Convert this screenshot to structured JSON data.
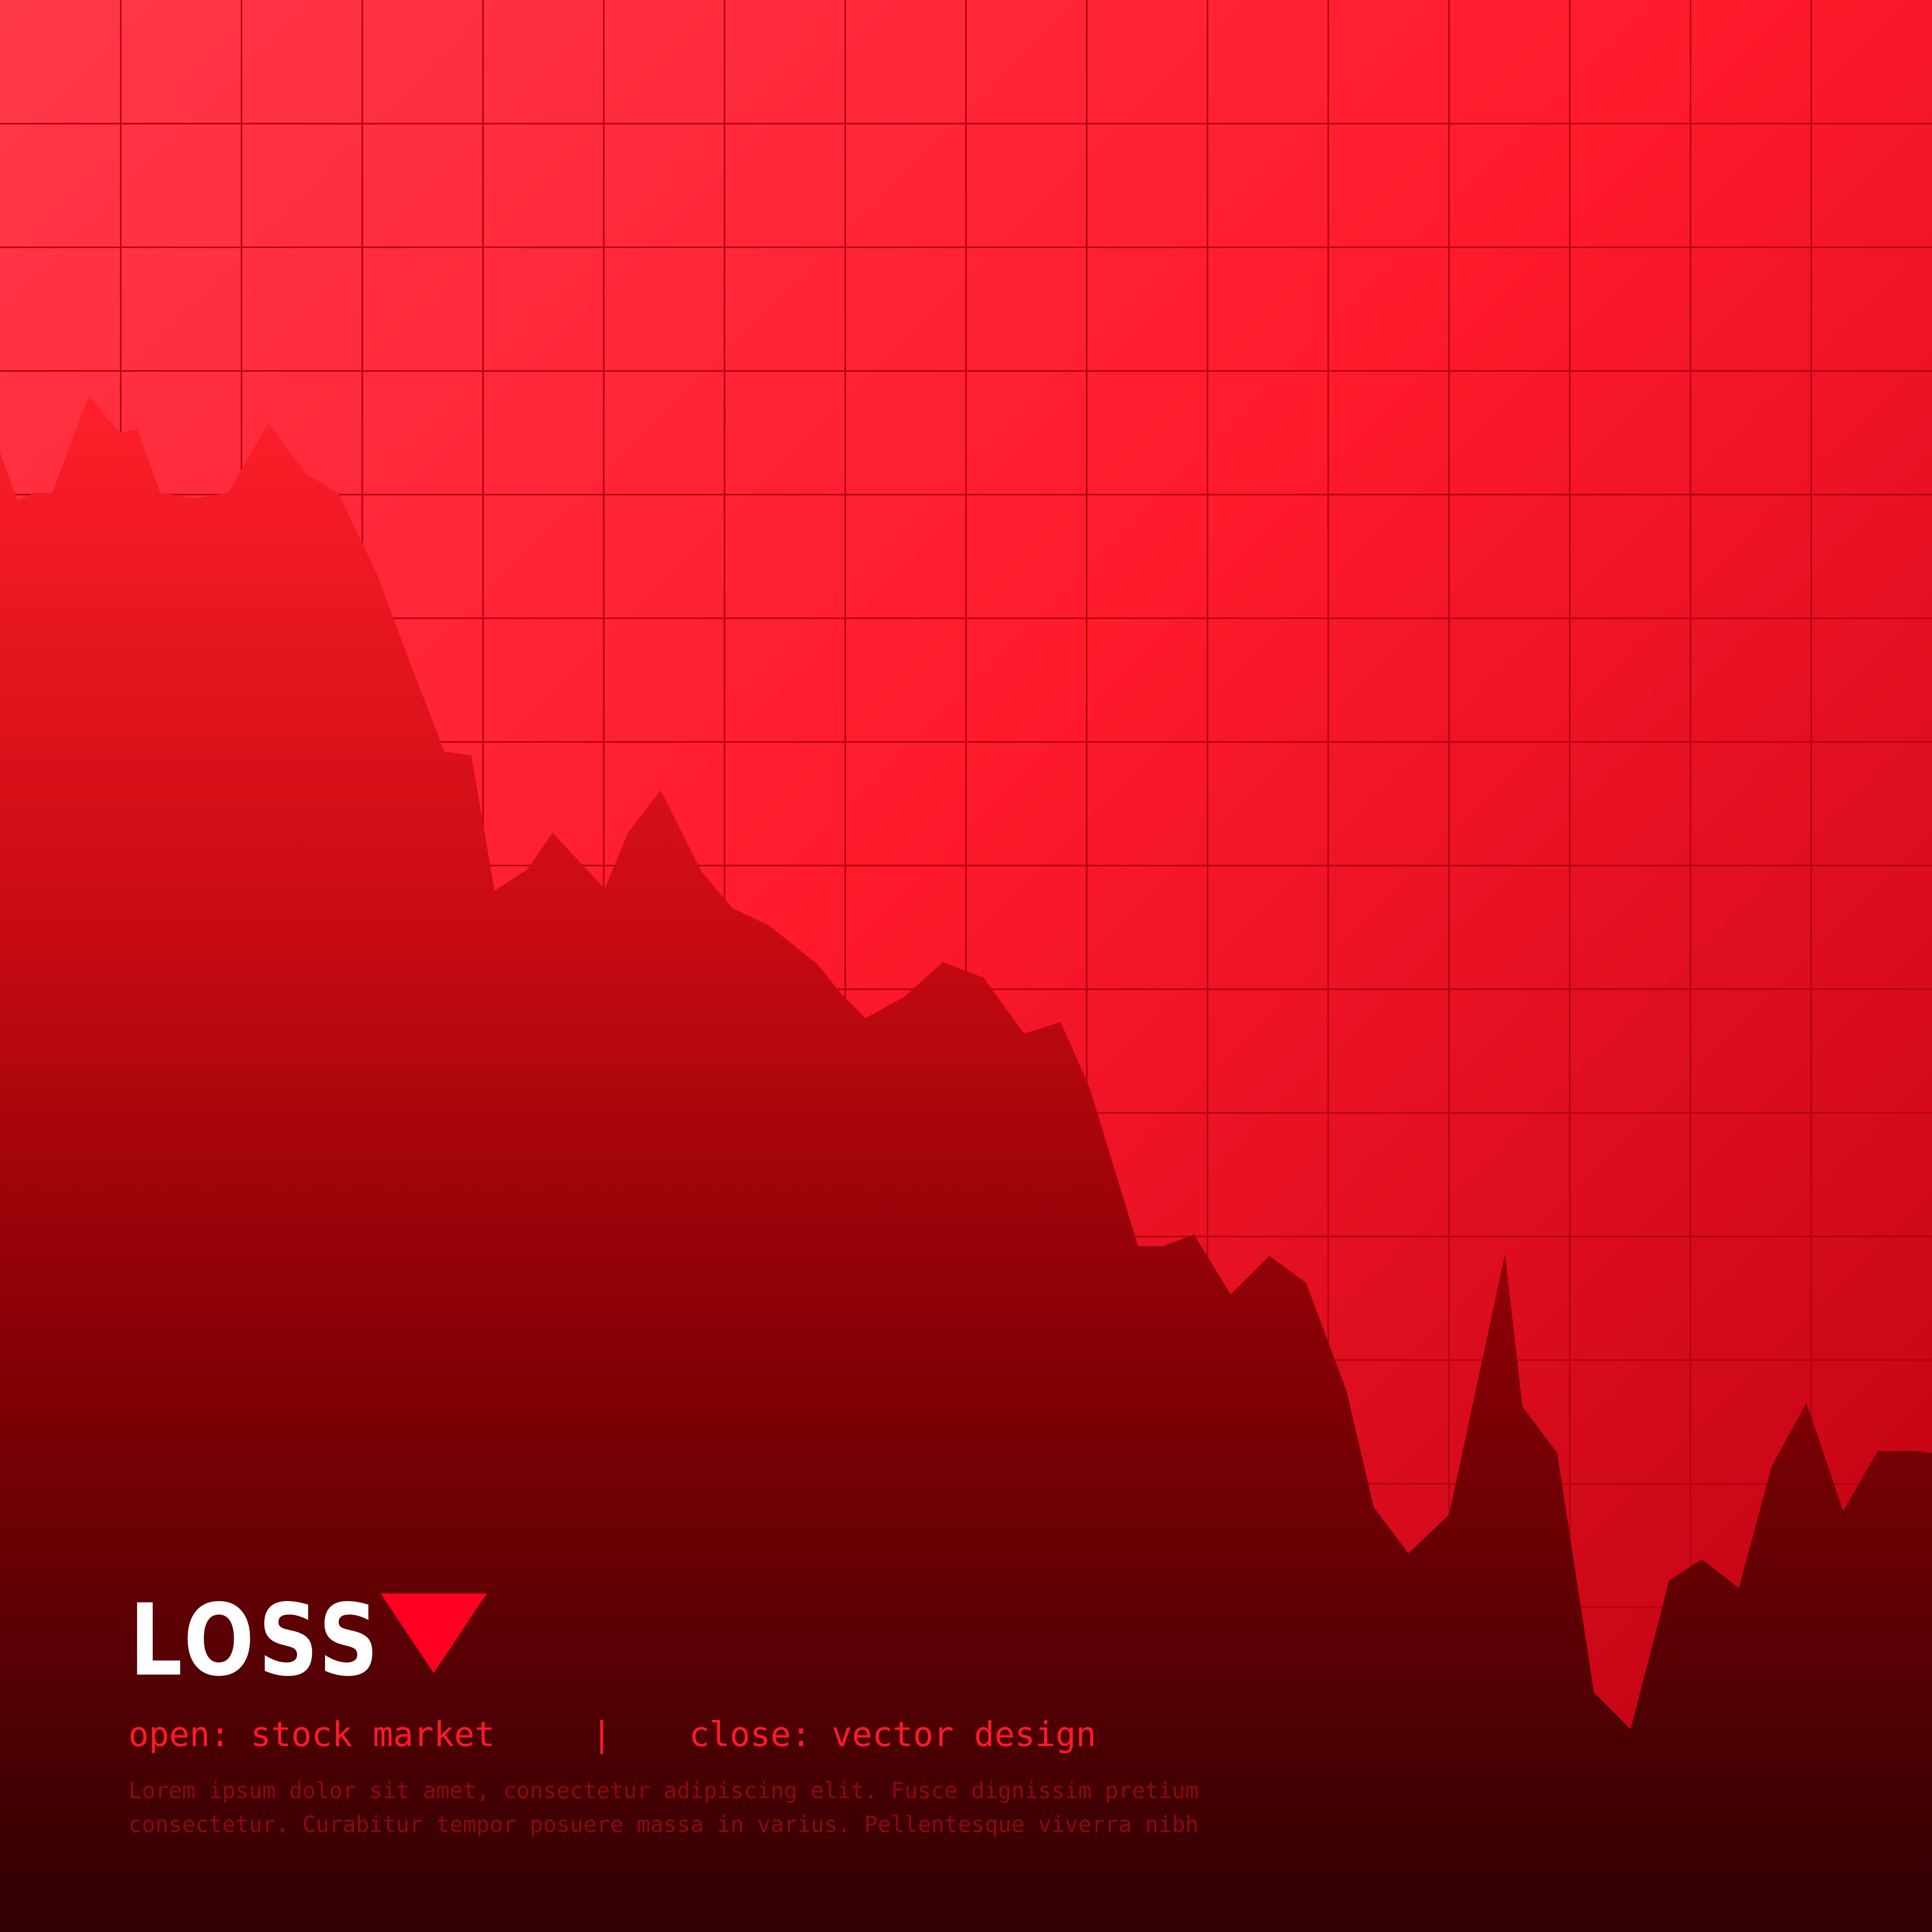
{
  "colors": {
    "bg_top_left": "#ff3848",
    "bg_top_right": "#ff1a2c",
    "bg_bottom": "#b8000f",
    "area_top": "#ff1f2a",
    "area_bottom": "#2e0002",
    "grid": "#b0000c",
    "arrow": "#ff0022",
    "accent_text": "#ff1a2b",
    "muted_text": "#8a0a12",
    "title_text": "#ffffff"
  },
  "labels": {
    "title": "LOSS",
    "arrow_icon": "down-triangle-icon",
    "open_text": "open: stock market",
    "separator": "|",
    "close_text": "close: vector design",
    "lorem_line1": "Lorem ipsum dolor sit amet, consectetur adipiscing elit. Fusce dignissim pretium",
    "lorem_line2": "consectetur. Curabitur tempor posuere massa in varius. Pellentesque viverra nibh"
  },
  "chart_data": {
    "type": "area",
    "title": "",
    "xlabel": "",
    "ylabel": "",
    "grid": true,
    "xlim": [
      0,
      100
    ],
    "ylim": [
      0,
      100
    ],
    "grid_x_step": 6.25,
    "grid_y_step": 6.4,
    "series": [
      {
        "x": [
          0,
          0.9,
          1.8,
          2.7,
          4.6,
          6.2,
          7.1,
          8.3,
          10.1,
          11.8,
          13.9,
          15.8,
          17.5,
          19.5,
          21.3,
          23.0,
          24.4,
          25.6,
          27.3,
          28.6,
          31.3,
          32.5,
          34.2,
          36.3,
          37.9,
          39.8,
          42.3,
          43.6,
          44.8,
          46.8,
          48.8,
          50.9,
          53.0,
          54.9,
          56.4,
          58.9,
          60.2,
          61.8,
          63.7,
          65.7,
          67.6,
          69.7,
          71.1,
          72.9,
          75.0,
          77.9,
          78.8,
          80.6,
          82.5,
          84.4,
          86.4,
          88.1,
          90.0,
          91.7,
          93.5,
          95.4,
          97.2,
          99.2,
          100
        ],
        "y": [
          76.6,
          74.1,
          74.5,
          74.5,
          79.5,
          77.6,
          77.8,
          74.5,
          74.2,
          74.5,
          78.1,
          75.5,
          74.5,
          70.3,
          65.5,
          61.1,
          60.9,
          53.9,
          55.0,
          56.9,
          54.0,
          56.9,
          59.1,
          54.9,
          53.0,
          52.1,
          50.1,
          48.5,
          47.3,
          48.4,
          50.2,
          49.4,
          46.5,
          47.1,
          43.7,
          35.5,
          35.5,
          36.1,
          33.0,
          35.0,
          33.6,
          28.0,
          22.0,
          19.6,
          21.6,
          35.1,
          27.2,
          24.8,
          12.4,
          10.5,
          18.2,
          19.3,
          17.8,
          24.1,
          27.4,
          21.8,
          24.9,
          24.9,
          24.8
        ]
      }
    ]
  }
}
